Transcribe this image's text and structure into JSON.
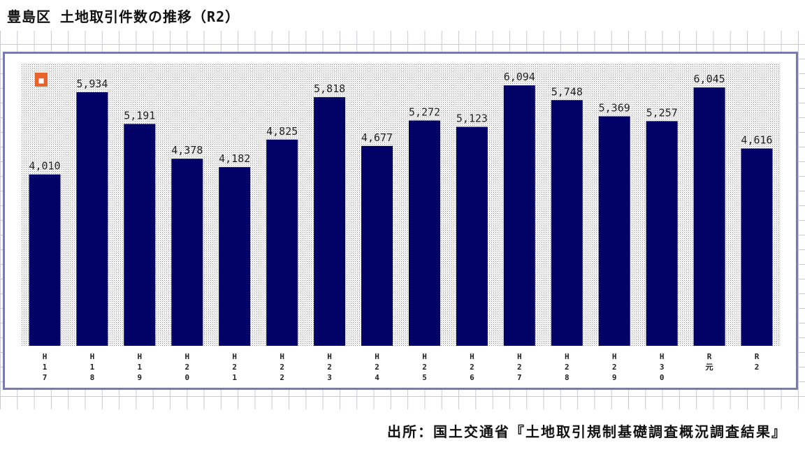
{
  "page": {
    "title": "豊島区 土地取引件数の推移（R2）"
  },
  "chart_data": {
    "type": "bar",
    "title": "豊島区 土地取引件数の推移（R2）",
    "categories": [
      "H17",
      "H18",
      "H19",
      "H20",
      "H21",
      "H22",
      "H23",
      "H24",
      "H25",
      "H26",
      "H27",
      "H28",
      "H29",
      "H30",
      "R元",
      "R2"
    ],
    "tick_labels": [
      [
        "H",
        "1",
        "7"
      ],
      [
        "H",
        "1",
        "8"
      ],
      [
        "H",
        "1",
        "9"
      ],
      [
        "H",
        "2",
        "0"
      ],
      [
        "H",
        "2",
        "1"
      ],
      [
        "H",
        "2",
        "2"
      ],
      [
        "H",
        "2",
        "3"
      ],
      [
        "H",
        "2",
        "4"
      ],
      [
        "H",
        "2",
        "5"
      ],
      [
        "H",
        "2",
        "6"
      ],
      [
        "H",
        "2",
        "7"
      ],
      [
        "H",
        "2",
        "8"
      ],
      [
        "H",
        "2",
        "9"
      ],
      [
        "H",
        "3",
        "0"
      ],
      [
        "R",
        "元"
      ],
      [
        "R",
        "2"
      ]
    ],
    "values": [
      4010,
      5934,
      5191,
      4378,
      4182,
      4825,
      5818,
      4677,
      5272,
      5123,
      6094,
      5748,
      5369,
      5257,
      6045,
      4616
    ],
    "data_labels": [
      "4,010",
      "5,934",
      "5,191",
      "4,378",
      "4,182",
      "4,825",
      "5,818",
      "4,677",
      "5,272",
      "5,123",
      "6,094",
      "5,748",
      "5,369",
      "5,257",
      "6,045",
      "4,616"
    ],
    "xlabel": "",
    "ylabel": "",
    "ylim": [
      0,
      6620
    ],
    "grid": false,
    "colors": {
      "bar": "#000066",
      "plot_pattern": "#9a9a9a",
      "frame": "#7a7ab0"
    }
  },
  "footer": {
    "source": "出所：国土交通省『土地取引規制基礎調査概況調査結果』"
  }
}
